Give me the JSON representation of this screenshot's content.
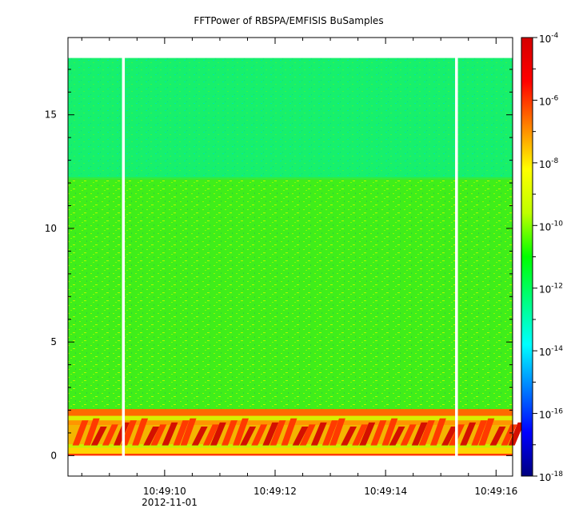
{
  "chart_data": {
    "type": "heatmap",
    "title": "FFTPower of RBSPA/EMFISIS  BuSamples",
    "xlabel": "",
    "ylabel": "",
    "x_ticks": [
      "10:49:10",
      "10:49:12",
      "10:49:14",
      "10:49:16"
    ],
    "x_tick_values_sec": [
      10,
      12,
      14,
      16
    ],
    "x_date_label": "2012-11-01",
    "xlim_sec": [
      8.25,
      16.3
    ],
    "y_ticks": [
      "0",
      "5",
      "10",
      "15"
    ],
    "y_tick_values": [
      0,
      5,
      10,
      15
    ],
    "ylim": [
      -0.9,
      18.4
    ],
    "data_frequency_range": [
      0,
      17.5
    ],
    "data_gaps_sec": [
      9.25,
      15.28
    ],
    "colorbar": {
      "scale": "log",
      "range": [
        1e-18,
        0.0001
      ],
      "tick_base": "10",
      "tick_exponents": [
        "-4",
        "-6",
        "-8",
        "-10",
        "-12",
        "-14",
        "-16",
        "-18"
      ],
      "colors": [
        "#00007f",
        "#0000ff",
        "#007fff",
        "#00ffff",
        "#00ff80",
        "#00ff00",
        "#bfff00",
        "#ffff00",
        "#ff8000",
        "#ff0000",
        "#d40000"
      ]
    },
    "spectral_levels": [
      {
        "band": [
          0,
          2.0
        ],
        "level_exp": -6.5
      },
      {
        "band": [
          2.0,
          12.2
        ],
        "level_exp": -9.6
      },
      {
        "band": [
          12.2,
          17.5
        ],
        "level_exp": -11.8
      }
    ],
    "grid": false
  }
}
